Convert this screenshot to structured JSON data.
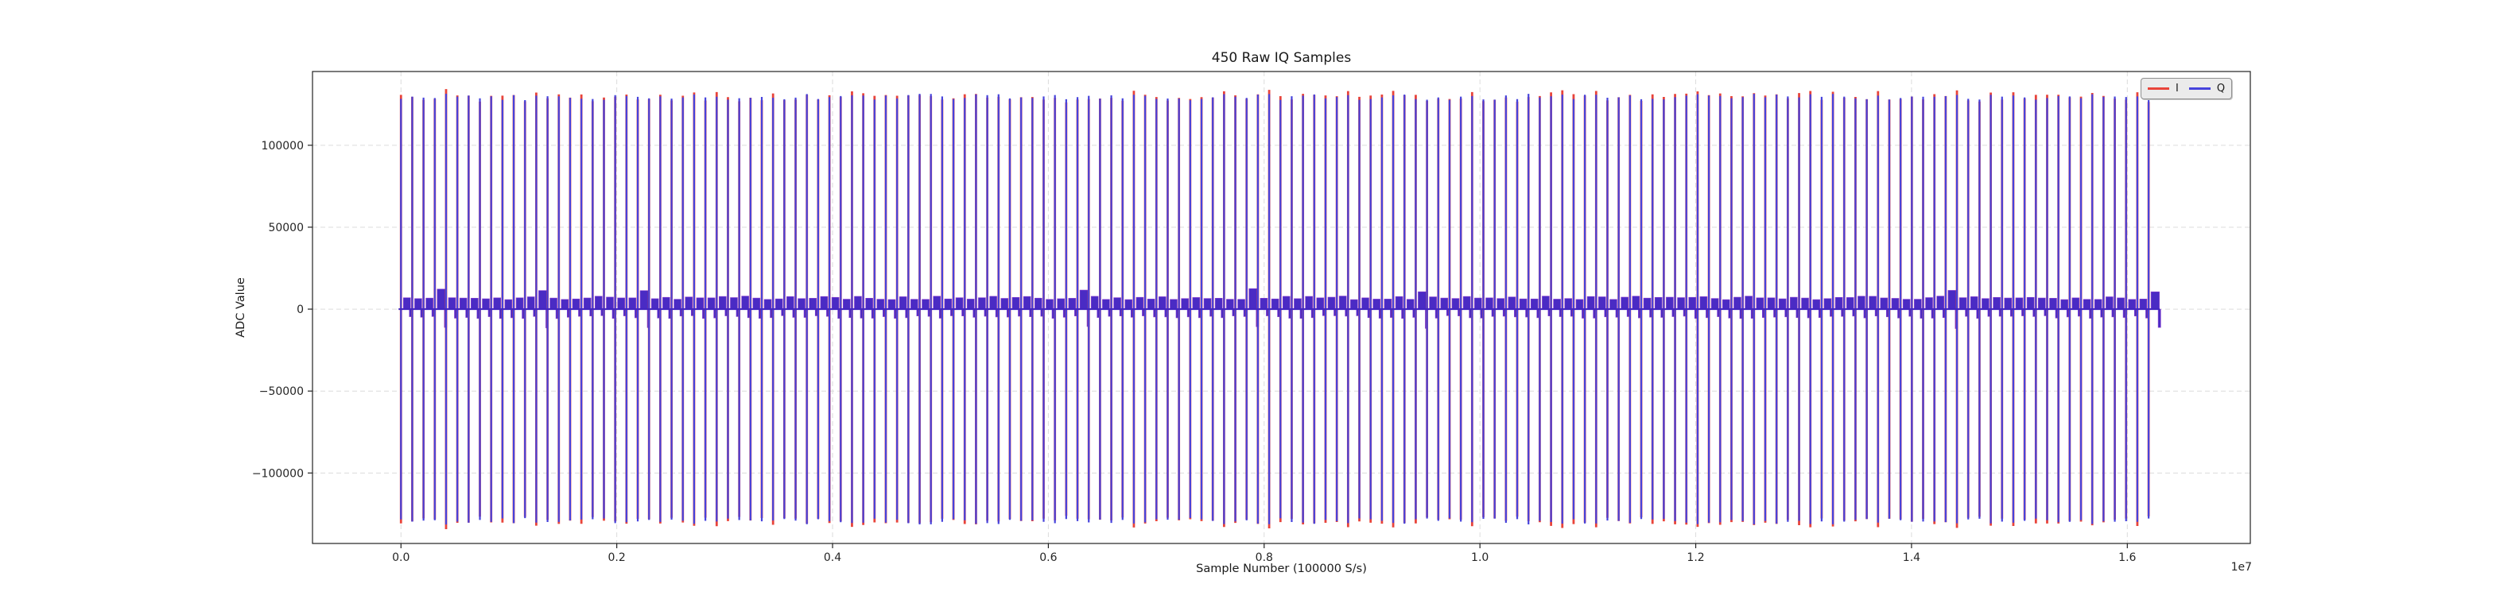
{
  "chart_data": {
    "type": "line",
    "title": "450 Raw IQ Samples",
    "xlabel": "Sample Number (100000 S/s)",
    "ylabel": "ADC Value",
    "x_offset_text": "1e7",
    "grid": true,
    "xlim": [
      -820000,
      17140000
    ],
    "ylim": [
      -143000,
      145000
    ],
    "x_ticks": {
      "values": [
        0,
        2000000,
        4000000,
        6000000,
        8000000,
        10000000,
        12000000,
        14000000,
        16000000
      ],
      "labels": [
        "0.0",
        "0.2",
        "0.4",
        "0.6",
        "0.8",
        "1.0",
        "1.2",
        "1.4",
        "1.6"
      ]
    },
    "y_ticks": {
      "values": [
        -100000,
        -50000,
        0,
        50000,
        100000
      ],
      "labels": [
        "−100000",
        "−50000",
        "0",
        "50000",
        "100000"
      ]
    },
    "legend": {
      "position": "upper right",
      "entries": [
        {
          "label": "I",
          "color": "#e8443a"
        },
        {
          "label": "Q",
          "color": "#4643dc"
        }
      ]
    },
    "series": [
      {
        "name": "I",
        "color": "#e8443a",
        "description_visible_in_plot": "red trace mostly hidden under Q; visible as red tips at spike extremes"
      },
      {
        "name": "Q",
        "color": "#4643dc",
        "description_visible_in_plot": "blue trace of periodic full-scale spikes with low-level bursts near zero"
      }
    ],
    "waveform": {
      "n_bursts": 156,
      "burst_period_samples": 104500,
      "first_burst_sample": 0,
      "last_sample": 16300000,
      "spike_amplitude": {
        "q_min": 127500,
        "q_max": 131500,
        "i_minus": 2000,
        "i_plus": 3000
      },
      "burst_level": {
        "top_min": 5800,
        "top_max": 8000,
        "bottom_min": -5800,
        "bottom_max": -4000
      },
      "tall_burst_indices": [
        3,
        12,
        21,
        60,
        75,
        90,
        137,
        155
      ],
      "tall_burst_level": {
        "top_min": 10500,
        "top_max": 13000,
        "bottom_min": -13000,
        "bottom_max": -10500
      },
      "baseline_value": 0
    },
    "colors": {
      "i": "#e8443a",
      "q": "#4643dc",
      "overlap": "#4a2bc4",
      "zero_line": "#4326c0",
      "grid": "#dcdcdc",
      "spine": "#222222",
      "tick_label": "#262626"
    }
  }
}
